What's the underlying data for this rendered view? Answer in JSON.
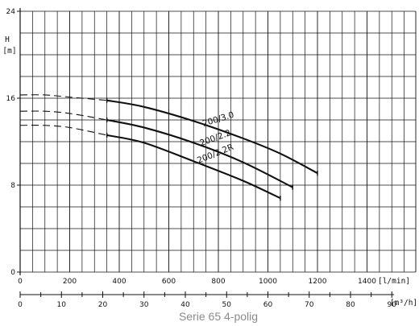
{
  "chart_data": {
    "type": "line",
    "title": "",
    "caption": "Serie 65 4-polig",
    "ylabel_symbol": "H",
    "ylabel_unit": "[m]",
    "ylim": [
      0,
      24
    ],
    "y_major_ticks": [
      0,
      8,
      16,
      24
    ],
    "y_grid_step": 2,
    "x_primary": {
      "unit_label": "[l/min]",
      "lim": [
        0,
        1570
      ],
      "ticks": [
        0,
        200,
        400,
        600,
        800,
        1000,
        1200,
        1400
      ],
      "grid_step": 50
    },
    "x_secondary": {
      "unit_label": "[m³/h]",
      "ticks": [
        0,
        10,
        20,
        30,
        40,
        50,
        60,
        70,
        80,
        90
      ],
      "minor_step": 5
    },
    "grid": true,
    "series": [
      {
        "name": "200/3.0",
        "dashed": [
          [
            0,
            16.3
          ],
          [
            100,
            16.3
          ],
          [
            200,
            16.1
          ],
          [
            350,
            15.8
          ]
        ],
        "solid": [
          [
            350,
            15.8
          ],
          [
            500,
            15.2
          ],
          [
            700,
            13.9
          ],
          [
            900,
            12.3
          ],
          [
            1050,
            10.9
          ],
          [
            1200,
            9.1
          ]
        ]
      },
      {
        "name": "200/2.2",
        "dashed": [
          [
            0,
            14.8
          ],
          [
            100,
            14.8
          ],
          [
            200,
            14.6
          ],
          [
            350,
            14.0
          ]
        ],
        "solid": [
          [
            350,
            14.0
          ],
          [
            500,
            13.3
          ],
          [
            700,
            11.9
          ],
          [
            900,
            10.1
          ],
          [
            1100,
            7.8
          ]
        ]
      },
      {
        "name": "200/2.2R",
        "dashed": [
          [
            0,
            13.5
          ],
          [
            100,
            13.5
          ],
          [
            200,
            13.3
          ],
          [
            350,
            12.6
          ]
        ],
        "solid": [
          [
            350,
            12.6
          ],
          [
            500,
            11.9
          ],
          [
            700,
            10.2
          ],
          [
            900,
            8.4
          ],
          [
            1050,
            6.8
          ]
        ]
      }
    ],
    "labels": [
      {
        "text": "200/3.0",
        "x": 740,
        "y": 13.4,
        "angle": -17
      },
      {
        "text": "200/2.2",
        "x": 730,
        "y": 11.6,
        "angle": -20
      },
      {
        "text": "200/2.2R",
        "x": 720,
        "y": 10.0,
        "angle": -22
      }
    ]
  }
}
